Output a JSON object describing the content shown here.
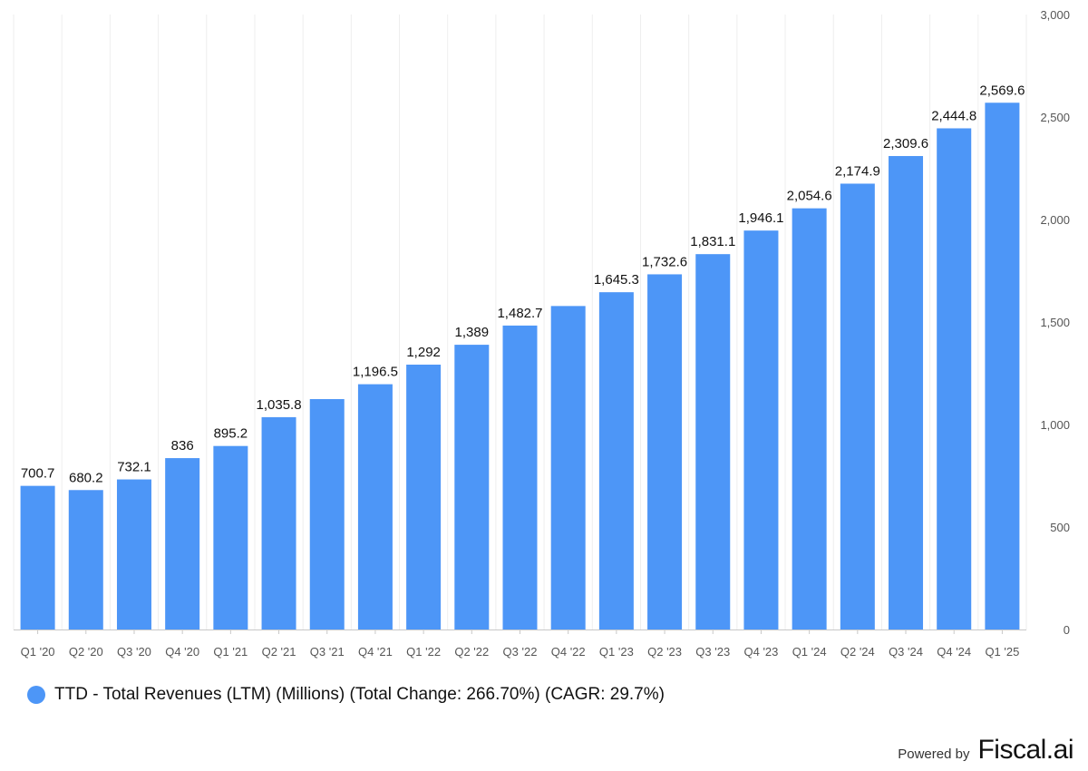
{
  "chart_data": {
    "type": "bar",
    "categories": [
      "Q1 '20",
      "Q2 '20",
      "Q3 '20",
      "Q4 '20",
      "Q1 '21",
      "Q2 '21",
      "Q3 '21",
      "Q4 '21",
      "Q1 '22",
      "Q2 '22",
      "Q3 '22",
      "Q4 '22",
      "Q1 '23",
      "Q2 '23",
      "Q3 '23",
      "Q4 '23",
      "Q1 '24",
      "Q2 '24",
      "Q3 '24",
      "Q4 '24",
      "Q1 '25"
    ],
    "series": [
      {
        "name": "TTD - Total Revenues (LTM) (Millions) (Total Change: 266.70%) (CAGR: 29.7%)",
        "values": [
          700.7,
          680.2,
          732.1,
          836,
          895.2,
          1035.8,
          1124,
          1196.5,
          1292,
          1389,
          1482.7,
          1578,
          1645.3,
          1732.6,
          1831.1,
          1946.1,
          2054.6,
          2174.9,
          2309.6,
          2444.8,
          2569.6
        ],
        "labels": [
          "700.7",
          "680.2",
          "732.1",
          "836",
          "895.2",
          "1,035.8",
          "",
          "1,196.5",
          "1,292",
          "1,389",
          "1,482.7",
          "",
          "1,645.3",
          "1,732.6",
          "1,831.1",
          "1,946.1",
          "2,054.6",
          "2,174.9",
          "2,309.6",
          "2,444.8",
          "2,569.6"
        ],
        "color": "#4d96f7"
      }
    ],
    "ylim": [
      0,
      3000
    ],
    "yticks": [
      0,
      500,
      1000,
      1500,
      2000,
      2500,
      3000
    ],
    "ytick_labels": [
      "0",
      "500",
      "1,000",
      "1,500",
      "2,000",
      "2,500",
      "3,000"
    ],
    "y_axis_side": "right",
    "grid": "vertical-light",
    "legend_position": "bottom-left"
  },
  "legend": {
    "label": "TTD - Total Revenues (LTM) (Millions) (Total Change: 266.70%) (CAGR: 29.7%)",
    "color": "#4d96f7"
  },
  "footer": {
    "powered_by": "Powered by",
    "brand": "Fiscal.ai"
  }
}
